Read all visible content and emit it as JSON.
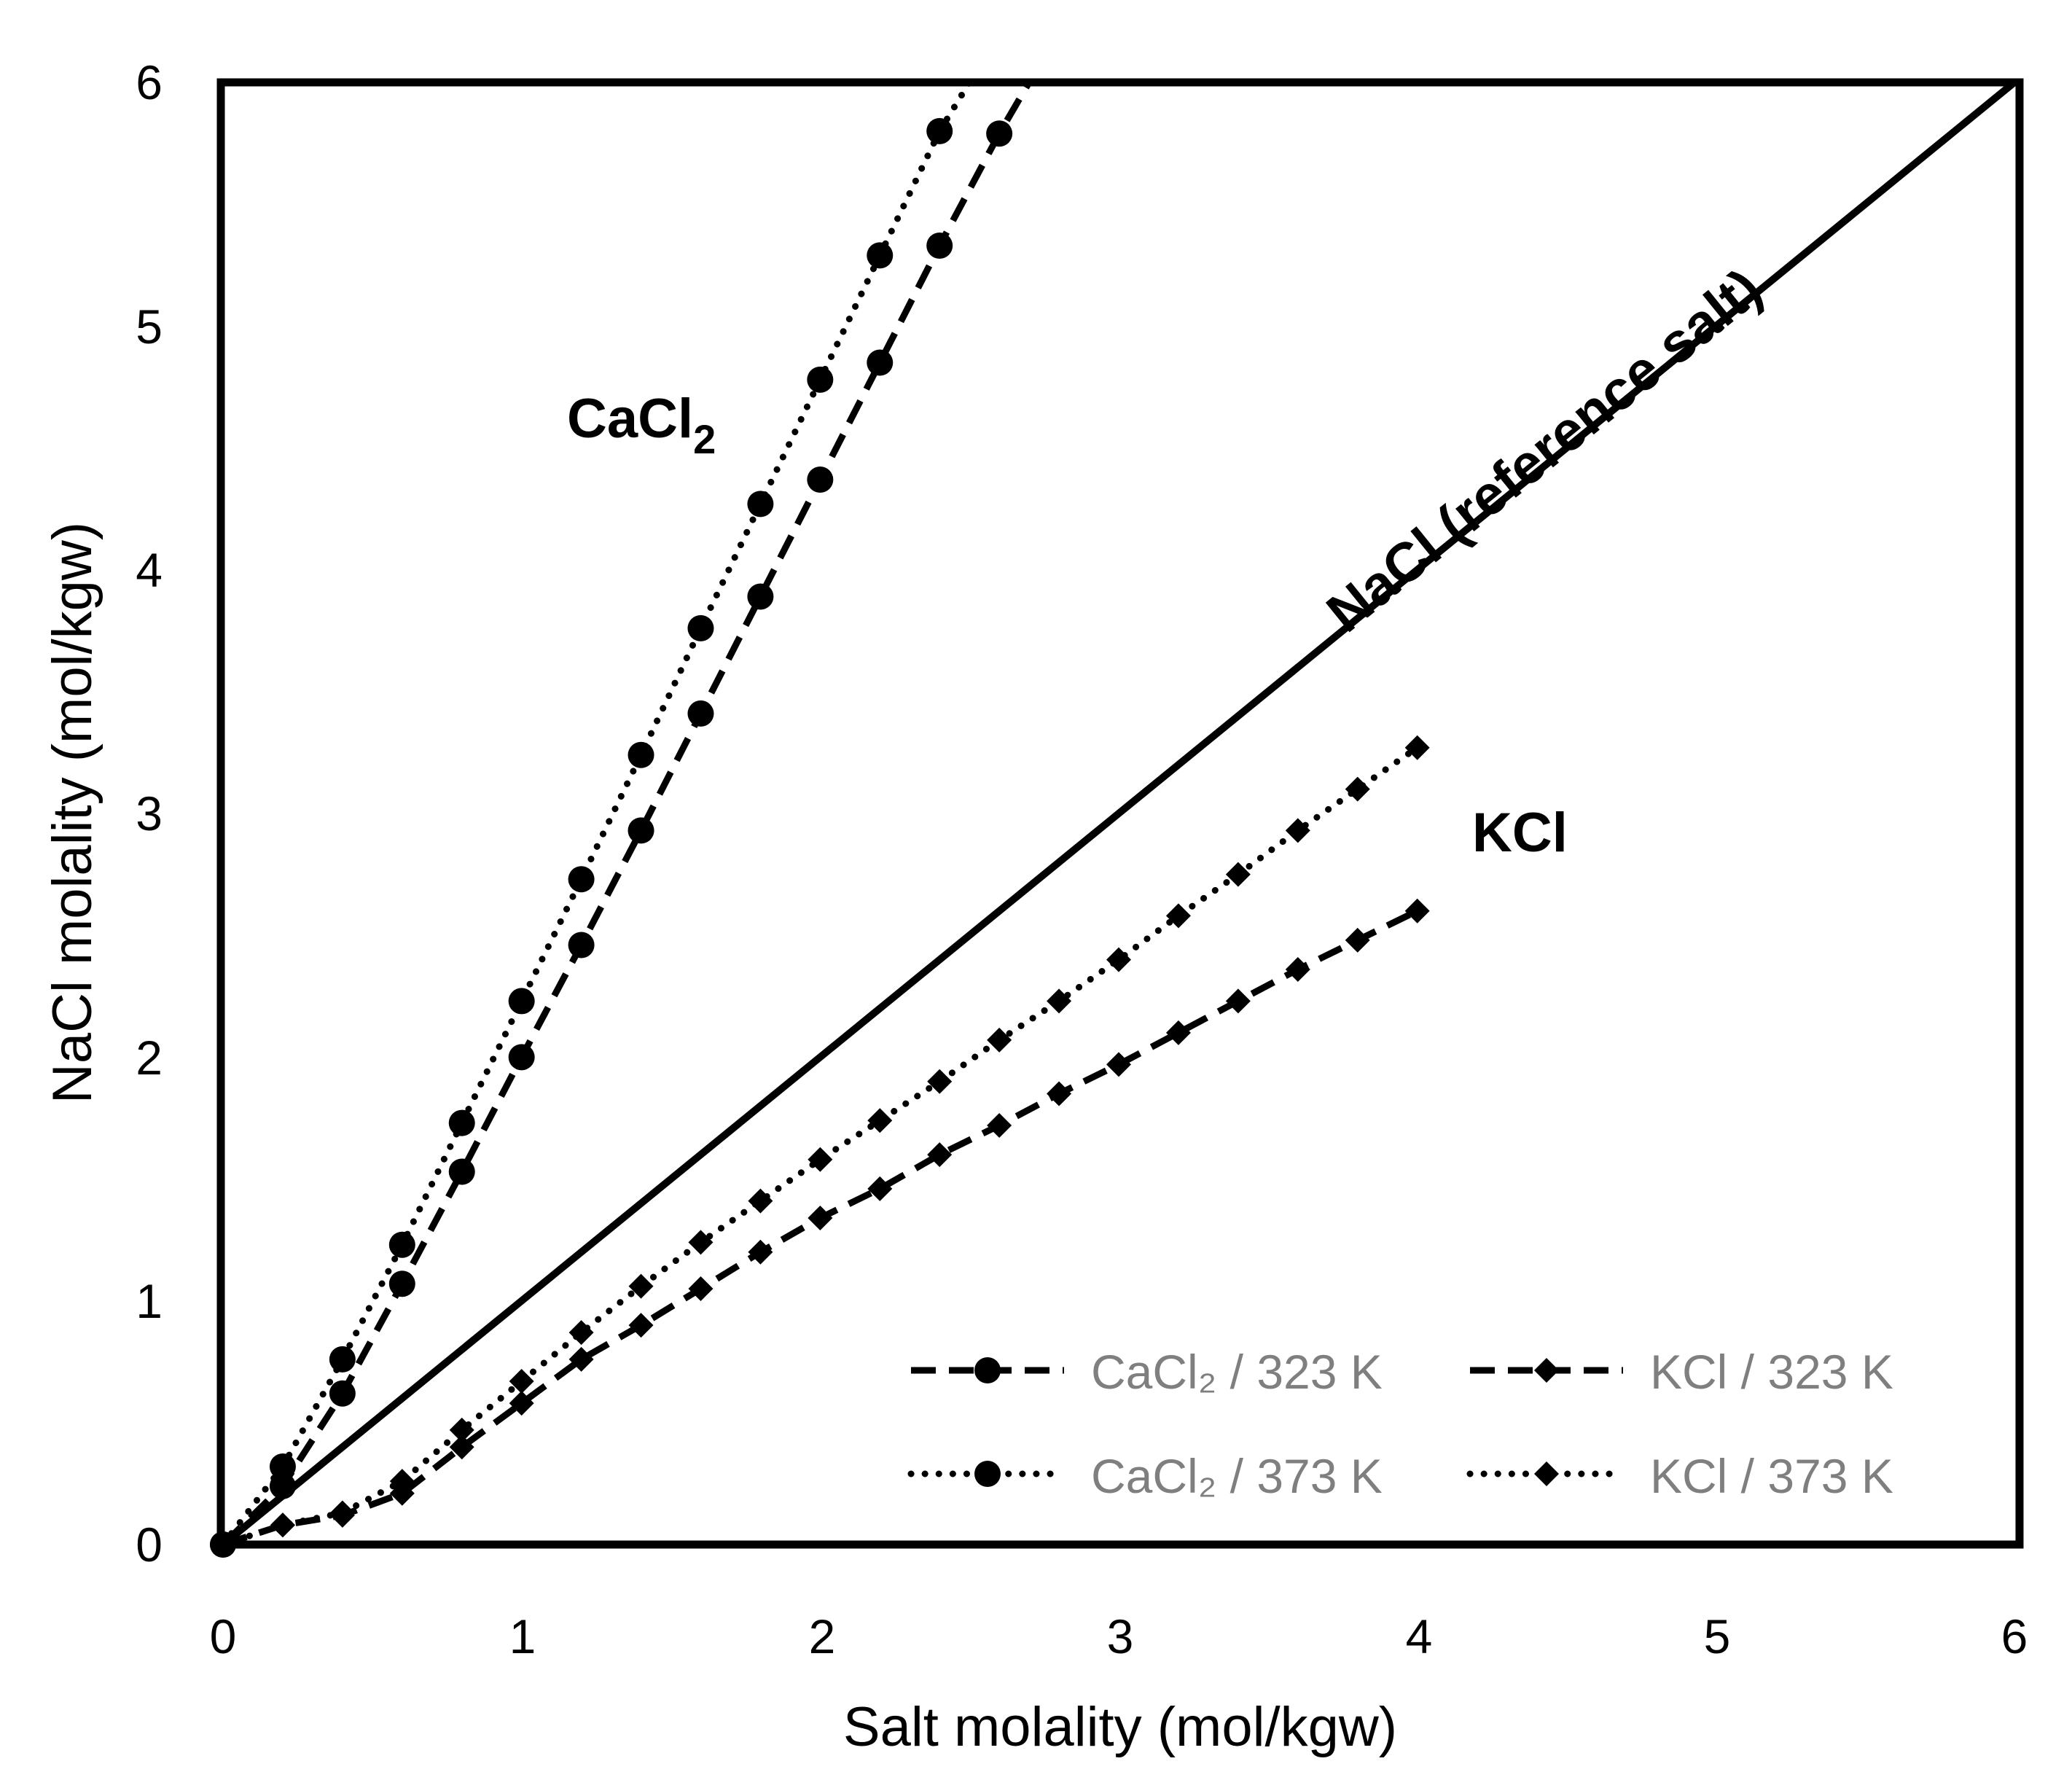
{
  "chart_data": {
    "type": "line",
    "title": "",
    "xlabel": "Salt molality (mol/kgw)",
    "ylabel": "NaCl molality (mol/kgw)",
    "xlim": [
      0,
      6
    ],
    "ylim": [
      0,
      6
    ],
    "xticks": [
      "0",
      "1",
      "2",
      "3",
      "4",
      "5",
      "6"
    ],
    "yticks": [
      "0",
      "1",
      "2",
      "3",
      "4",
      "5",
      "6"
    ],
    "grid": false,
    "legend_position": "bottom-right",
    "annotations": {
      "cacl2": "CaCl2",
      "nacl": "NaCl (reference salt)",
      "kcl": "KCl"
    },
    "series": [
      {
        "name": "NaCl (reference salt)",
        "style": "solid",
        "marker": "none",
        "x": [
          0,
          6
        ],
        "y": [
          0,
          6
        ]
      },
      {
        "name": "CaCl₂ / 323 K",
        "style": "dashed",
        "marker": "circle",
        "x": [
          0,
          0.2,
          0.4,
          0.6,
          0.8,
          1.0,
          1.2,
          1.4,
          1.6,
          1.8,
          2.0,
          2.2,
          2.4,
          2.6
        ],
        "y": [
          0,
          0.24,
          0.62,
          1.07,
          1.53,
          2.0,
          2.46,
          2.93,
          3.41,
          3.89,
          4.37,
          4.85,
          5.33,
          5.79
        ],
        "line_end": [
          2.7,
          6.0
        ]
      },
      {
        "name": "CaCl₂ / 373 K",
        "style": "dotted",
        "marker": "circle",
        "x": [
          0,
          0.2,
          0.4,
          0.6,
          0.8,
          1.0,
          1.2,
          1.4,
          1.6,
          1.8,
          2.0,
          2.2,
          2.4
        ],
        "y": [
          0,
          0.32,
          0.76,
          1.23,
          1.73,
          2.23,
          2.73,
          3.24,
          3.76,
          4.27,
          4.78,
          5.29,
          5.8
        ],
        "line_end": [
          2.5,
          6.0
        ]
      },
      {
        "name": "KCl / 323 K",
        "style": "dashed",
        "marker": "diamond",
        "x": [
          0,
          0.2,
          0.4,
          0.6,
          0.8,
          1.0,
          1.2,
          1.4,
          1.6,
          1.8,
          2.0,
          2.2,
          2.4,
          2.6,
          2.8,
          3.0,
          3.2,
          3.4,
          3.6,
          3.8,
          4.0
        ],
        "y": [
          0,
          0.08,
          0.12,
          0.21,
          0.4,
          0.58,
          0.76,
          0.9,
          1.05,
          1.2,
          1.34,
          1.46,
          1.6,
          1.72,
          1.85,
          1.97,
          2.1,
          2.23,
          2.36,
          2.48,
          2.6
        ]
      },
      {
        "name": "KCl / 373 K",
        "style": "dotted",
        "marker": "diamond",
        "x": [
          0,
          0.2,
          0.4,
          0.6,
          0.8,
          1.0,
          1.2,
          1.4,
          1.6,
          1.8,
          2.0,
          2.2,
          2.4,
          2.6,
          2.8,
          3.0,
          3.2,
          3.4,
          3.6,
          3.8,
          4.0
        ],
        "y": [
          0,
          0.08,
          0.13,
          0.26,
          0.47,
          0.67,
          0.87,
          1.06,
          1.24,
          1.41,
          1.58,
          1.74,
          1.9,
          2.07,
          2.23,
          2.4,
          2.58,
          2.75,
          2.93,
          3.1,
          3.27
        ]
      }
    ]
  }
}
